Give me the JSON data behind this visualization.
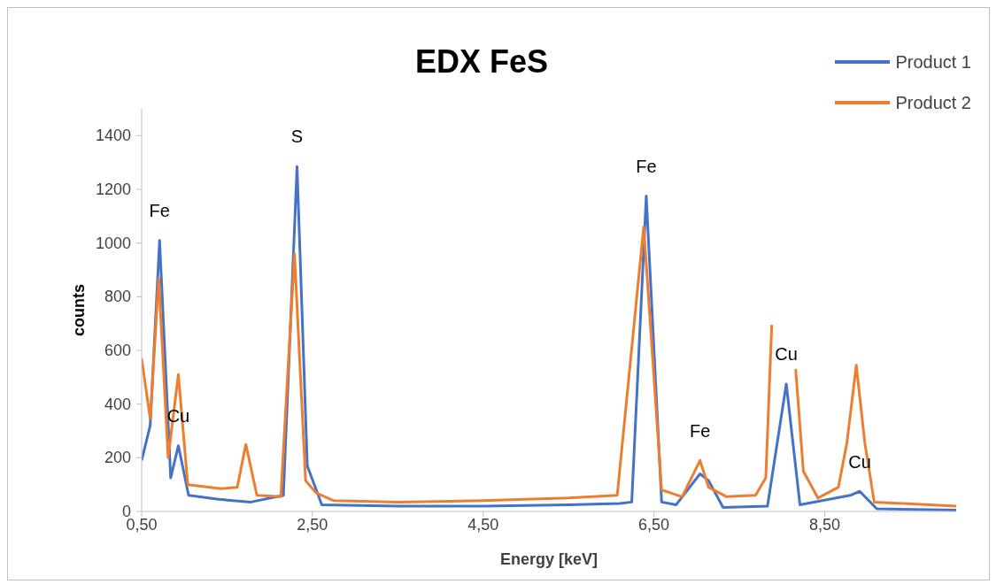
{
  "chart_data": {
    "type": "line",
    "title": "EDX FeS",
    "xlabel": "Energy [keV]",
    "ylabel": "counts",
    "xlim": [
      0.5,
      10.04
    ],
    "ylim": [
      0,
      1500
    ],
    "xticks": [
      {
        "value": 0.5,
        "label": "0,50"
      },
      {
        "value": 2.5,
        "label": "2,50"
      },
      {
        "value": 4.5,
        "label": "4,50"
      },
      {
        "value": 6.5,
        "label": "6,50"
      },
      {
        "value": 8.5,
        "label": "8,50"
      }
    ],
    "yticks": [
      0,
      200,
      400,
      600,
      800,
      1000,
      1200,
      1400
    ],
    "grid": false,
    "legend": "top right",
    "series": [
      {
        "name": "Product 1",
        "color": "#4472c4",
        "x": [
          0.5,
          0.6,
          0.71,
          0.84,
          0.93,
          1.05,
          1.4,
          1.78,
          2.16,
          2.32,
          2.44,
          2.61,
          3.5,
          4.5,
          5.5,
          6.1,
          6.24,
          6.41,
          6.59,
          6.76,
          7.04,
          7.14,
          7.31,
          7.83,
          8.05,
          8.21,
          8.8,
          8.91,
          9.11,
          10.04
        ],
        "values": [
          190,
          320,
          1010,
          125,
          245,
          60,
          45,
          35,
          60,
          1285,
          170,
          25,
          20,
          20,
          25,
          30,
          35,
          1175,
          35,
          25,
          140,
          115,
          15,
          20,
          475,
          25,
          60,
          75,
          10,
          5
        ]
      },
      {
        "name": "Product 2",
        "color": "#ed7d31",
        "x": [
          0.5,
          0.6,
          0.7,
          0.81,
          0.93,
          1.04,
          1.43,
          1.62,
          1.72,
          1.85,
          2.13,
          2.29,
          2.42,
          2.54,
          2.75,
          3.5,
          4.5,
          5.5,
          6.07,
          6.38,
          6.59,
          6.83,
          7.04,
          7.14,
          7.35,
          7.69,
          7.81,
          7.88,
          7.93,
          8.1,
          8.16,
          8.25,
          8.42,
          8.66,
          8.76,
          8.87,
          8.97,
          9.08,
          10.04
        ],
        "values": [
          570,
          345,
          870,
          200,
          510,
          100,
          85,
          90,
          250,
          60,
          55,
          960,
          115,
          70,
          40,
          35,
          40,
          50,
          60,
          1060,
          80,
          55,
          190,
          90,
          55,
          60,
          125,
          695,
          null,
          null,
          530,
          150,
          50,
          90,
          255,
          545,
          255,
          35,
          20
        ]
      }
    ],
    "annotations": [
      {
        "text": "Fe",
        "x": 0.71,
        "y": 1010
      },
      {
        "text": "Cu",
        "x": 0.93,
        "y": 245
      },
      {
        "text": "S",
        "x": 2.32,
        "y": 1285
      },
      {
        "text": "Fe",
        "x": 6.41,
        "y": 1175
      },
      {
        "text": "Fe",
        "x": 7.04,
        "y": 190
      },
      {
        "text": "Cu",
        "x": 8.05,
        "y": 475
      },
      {
        "text": "Cu",
        "x": 8.91,
        "y": 75
      }
    ]
  }
}
